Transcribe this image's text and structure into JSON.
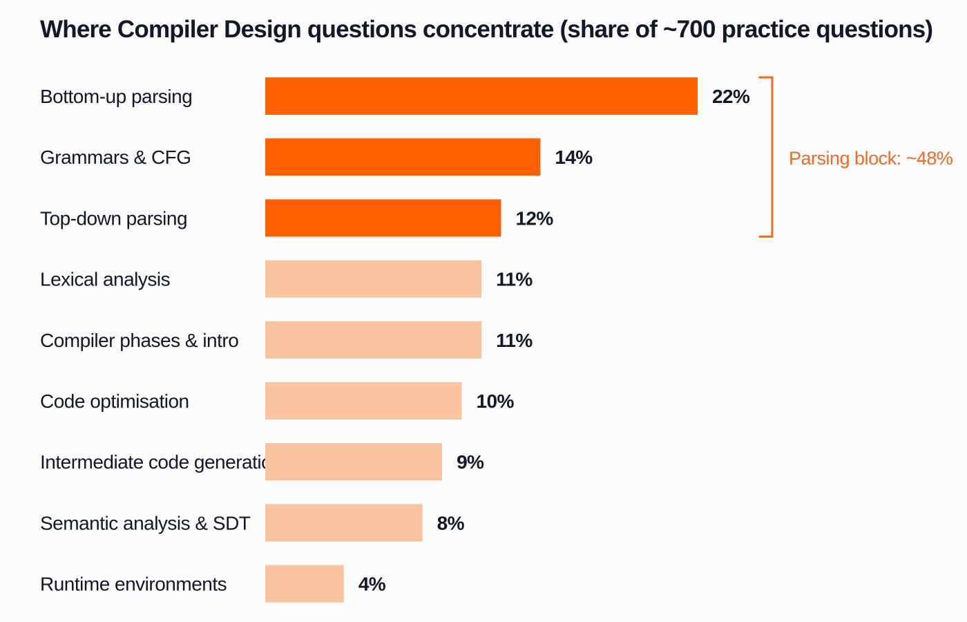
{
  "title": "Where Compiler Design questions concentrate (share of ~700 practice questions)",
  "chart_data": {
    "type": "bar",
    "orientation": "horizontal",
    "title": "Where Compiler Design questions concentrate (share of ~700 practice questions)",
    "categories": [
      "Bottom-up parsing",
      "Grammars & CFG",
      "Top-down parsing",
      "Lexical analysis",
      "Compiler phases & intro",
      "Code optimisation",
      "Intermediate code generation",
      "Semantic analysis & SDT",
      "Runtime environments"
    ],
    "values": [
      22,
      14,
      12,
      11,
      11,
      10,
      9,
      8,
      4
    ],
    "value_labels": [
      "22%",
      "14%",
      "12%",
      "11%",
      "11%",
      "10%",
      "9%",
      "8%",
      "4%"
    ],
    "highlighted_categories": [
      "Bottom-up parsing",
      "Grammars & CFG",
      "Top-down parsing"
    ],
    "xlim": [
      0,
      22
    ],
    "grid": false,
    "axes_visible": false,
    "colors": {
      "highlight": "#fe6000",
      "muted": "#f9c3a0",
      "text": "#111827",
      "annotation": "#f26a21"
    },
    "annotations": [
      {
        "type": "bracket",
        "label": "Parsing block: ~48%",
        "categories": [
          "Bottom-up parsing",
          "Grammars & CFG",
          "Top-down parsing"
        ]
      }
    ]
  }
}
